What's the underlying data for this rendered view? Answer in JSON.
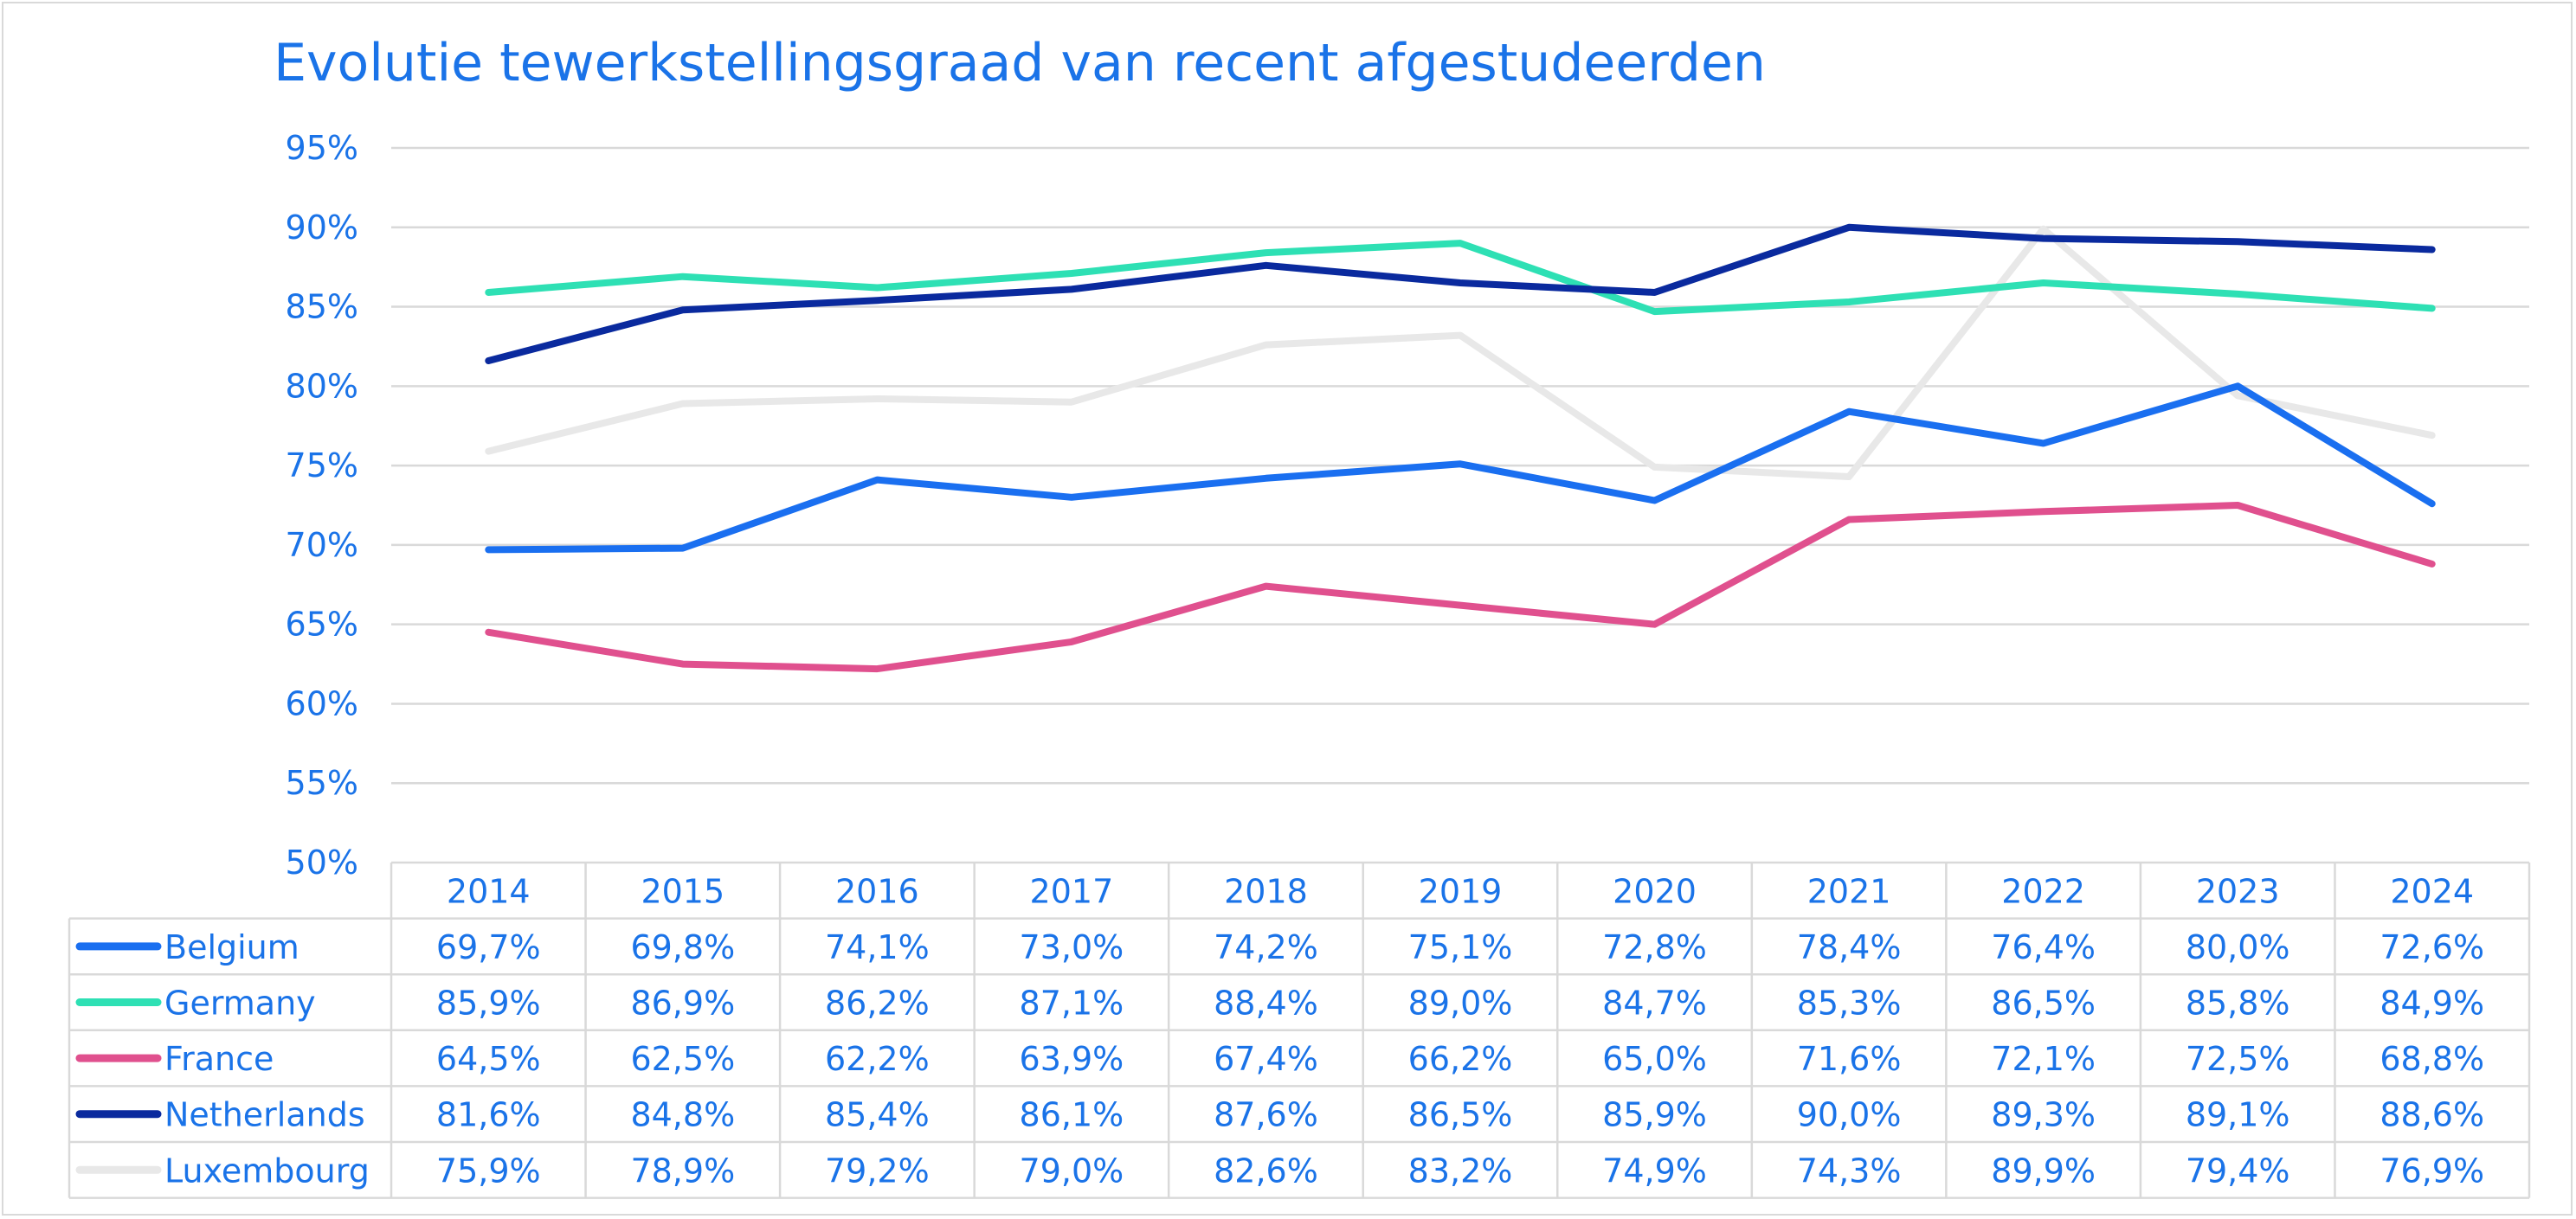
{
  "chart_data": {
    "type": "line",
    "title": "Evolutie tewerkstellingsgraad van recent afgestudeerden",
    "xlabel": "",
    "ylabel": "",
    "ylim": [
      50,
      95
    ],
    "y_ticks": [
      "95%",
      "90%",
      "85%",
      "80%",
      "75%",
      "70%",
      "65%",
      "60%",
      "55%",
      "50%"
    ],
    "categories": [
      "2014",
      "2015",
      "2016",
      "2017",
      "2018",
      "2019",
      "2020",
      "2021",
      "2022",
      "2023",
      "2024"
    ],
    "grid": true,
    "legend": "data-table",
    "series": [
      {
        "name": "Belgium",
        "color": "#1a6ff0",
        "values": [
          69.7,
          69.8,
          74.1,
          73.0,
          74.2,
          75.1,
          72.8,
          78.4,
          76.4,
          80.0,
          72.6
        ],
        "labels": [
          "69,7%",
          "69,8%",
          "74,1%",
          "73,0%",
          "74,2%",
          "75,1%",
          "72,8%",
          "78,4%",
          "76,4%",
          "80,0%",
          "72,6%"
        ]
      },
      {
        "name": "Germany",
        "color": "#2ee0b4",
        "values": [
          85.9,
          86.9,
          86.2,
          87.1,
          88.4,
          89.0,
          84.7,
          85.3,
          86.5,
          85.8,
          84.9
        ],
        "labels": [
          "85,9%",
          "86,9%",
          "86,2%",
          "87,1%",
          "88,4%",
          "89,0%",
          "84,7%",
          "85,3%",
          "86,5%",
          "85,8%",
          "84,9%"
        ]
      },
      {
        "name": "France",
        "color": "#e0508e",
        "values": [
          64.5,
          62.5,
          62.2,
          63.9,
          67.4,
          66.2,
          65.0,
          71.6,
          72.1,
          72.5,
          68.8
        ],
        "labels": [
          "64,5%",
          "62,5%",
          "62,2%",
          "63,9%",
          "67,4%",
          "66,2%",
          "65,0%",
          "71,6%",
          "72,1%",
          "72,5%",
          "68,8%"
        ]
      },
      {
        "name": "Netherlands",
        "color": "#0a2a9e",
        "values": [
          81.6,
          84.8,
          85.4,
          86.1,
          87.6,
          86.5,
          85.9,
          90.0,
          89.3,
          89.1,
          88.6
        ],
        "labels": [
          "81,6%",
          "84,8%",
          "85,4%",
          "86,1%",
          "87,6%",
          "86,5%",
          "85,9%",
          "90,0%",
          "89,3%",
          "89,1%",
          "88,6%"
        ]
      },
      {
        "name": "Luxembourg",
        "color": "#e8e8e8",
        "values": [
          75.9,
          78.9,
          79.2,
          79.0,
          82.6,
          83.2,
          74.9,
          74.3,
          89.9,
          79.4,
          76.9
        ],
        "labels": [
          "75,9%",
          "78,9%",
          "79,2%",
          "79,0%",
          "82,6%",
          "83,2%",
          "74,9%",
          "74,3%",
          "89,9%",
          "79,4%",
          "76,9%"
        ]
      }
    ]
  }
}
